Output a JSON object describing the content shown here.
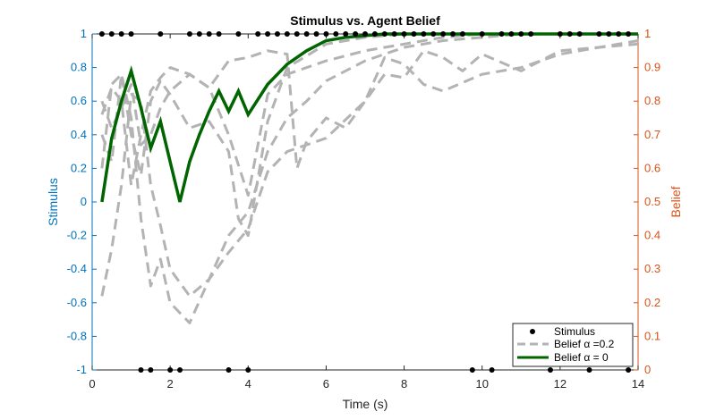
{
  "chart_data": {
    "type": "line",
    "title": "Stimulus vs. Agent Belief",
    "xlabel": "Time (s)",
    "ylabel_left": "Stimulus",
    "ylabel_right": "Belief",
    "xlim": [
      0,
      14
    ],
    "ylim_left": [
      -1,
      1
    ],
    "ylim_right": [
      0,
      1
    ],
    "x_ticks": [
      "0",
      "2",
      "4",
      "6",
      "8",
      "10",
      "12",
      "14"
    ],
    "y_left_ticks": [
      "-1",
      "-0.8",
      "-0.6",
      "-0.4",
      "-0.2",
      "0",
      "0.2",
      "0.4",
      "0.6",
      "0.8",
      "1"
    ],
    "y_right_ticks": [
      "0",
      "0.1",
      "0.2",
      "0.3",
      "0.4",
      "0.5",
      "0.6",
      "0.7",
      "0.8",
      "0.9",
      "1"
    ],
    "legend": {
      "position": "bottom-right",
      "entries": [
        "Stimulus",
        "Belief α =0.2",
        "Belief α = 0"
      ]
    },
    "colors": {
      "left_axis": "#0072BD",
      "right_axis": "#D95319",
      "stimulus": "#000000",
      "belief_alpha_02": "#b3b3b3",
      "belief_alpha_0": "#006400"
    },
    "stimulus_points": {
      "name": "Stimulus",
      "plus_one_times": [
        0.25,
        0.5,
        0.75,
        1.0,
        1.75,
        2.5,
        2.75,
        3.0,
        3.25,
        3.75,
        4.25,
        4.5,
        4.75,
        5.0,
        5.25,
        5.5,
        5.75,
        6.0,
        6.25,
        6.5,
        6.75,
        7.0,
        7.25,
        7.5,
        7.75,
        8.0,
        8.25,
        8.5,
        8.75,
        9.0,
        9.25,
        9.5,
        10.0,
        10.5,
        10.75,
        11.0,
        11.25,
        12.0,
        12.25,
        12.5,
        13.0,
        13.25,
        13.5,
        13.75
      ],
      "minus_one_times": [
        1.25,
        1.5,
        2.0,
        2.25,
        3.5,
        4.0,
        9.75,
        10.25,
        11.75,
        12.75,
        13.75
      ]
    },
    "series": [
      {
        "name": "Belief α = 0",
        "style": "solid",
        "x": [
          0.25,
          0.5,
          0.75,
          1.0,
          1.25,
          1.5,
          1.75,
          2.0,
          2.25,
          2.5,
          2.75,
          3.0,
          3.25,
          3.5,
          3.75,
          4.0,
          4.5,
          5.0,
          5.5,
          6.0,
          6.5,
          7.0,
          7.5,
          8.0,
          9.0,
          10.0,
          11.0,
          12.0,
          13.0,
          14.0
        ],
        "y": [
          0.5,
          0.69,
          0.8,
          0.89,
          0.78,
          0.66,
          0.74,
          0.62,
          0.5,
          0.62,
          0.7,
          0.77,
          0.83,
          0.77,
          0.83,
          0.76,
          0.85,
          0.91,
          0.95,
          0.98,
          0.99,
          0.995,
          1.0,
          1.0,
          1.0,
          1.0,
          1.0,
          1.0,
          1.0,
          1.0
        ]
      }
    ],
    "ghost_traces_belief_alpha_02": [
      {
        "x": [
          0.25,
          0.5,
          0.75,
          1.0,
          1.25,
          1.5,
          1.75,
          2.0,
          2.5,
          3.0,
          3.5,
          4.0,
          4.5,
          5.0,
          5.5,
          6.0,
          7.0,
          8.0,
          9.0,
          10.0,
          11.0,
          12.0,
          13.0,
          14.0
        ],
        "y": [
          0.6,
          0.85,
          0.88,
          0.75,
          0.45,
          0.25,
          0.33,
          0.2,
          0.14,
          0.27,
          0.4,
          0.47,
          0.65,
          0.75,
          0.8,
          0.86,
          0.92,
          0.96,
          0.98,
          0.99,
          1.0,
          1.0,
          1.0,
          1.0
        ]
      },
      {
        "x": [
          0.25,
          0.5,
          0.75,
          1.0,
          1.25,
          1.5,
          1.75,
          2.0,
          2.5,
          3.0,
          3.5,
          4.0,
          4.5,
          5.0,
          6.0,
          7.0,
          7.5,
          8.0,
          8.5,
          9.0,
          10.0,
          11.0,
          12.0,
          13.0,
          14.0
        ],
        "y": [
          0.22,
          0.36,
          0.55,
          0.82,
          0.8,
          0.55,
          0.43,
          0.3,
          0.22,
          0.27,
          0.35,
          0.42,
          0.59,
          0.65,
          0.69,
          0.8,
          0.93,
          0.91,
          0.85,
          0.83,
          0.88,
          0.9,
          0.94,
          0.96,
          0.98
        ]
      },
      {
        "x": [
          0.25,
          0.5,
          0.75,
          1.0,
          1.25,
          1.5,
          1.75,
          2.0,
          2.5,
          3.0,
          3.5,
          4.0,
          4.5,
          5.0,
          6.0,
          7.0,
          8.0,
          9.0,
          10.0,
          11.0,
          12.0,
          13.0,
          14.0
        ],
        "y": [
          0.8,
          0.72,
          0.78,
          0.85,
          0.67,
          0.7,
          0.78,
          0.83,
          0.88,
          0.84,
          0.7,
          0.52,
          0.82,
          0.88,
          0.92,
          0.95,
          0.97,
          0.99,
          1.0,
          1.0,
          1.0,
          1.0,
          1.0
        ]
      },
      {
        "x": [
          0.25,
          0.5,
          0.75,
          1.0,
          1.25,
          1.5,
          1.75,
          2.0,
          2.5,
          3.0,
          3.5,
          3.75,
          4.0,
          4.5,
          5.0,
          6.0,
          7.0,
          8.0,
          9.0,
          10.0,
          11.0,
          12.0,
          13.0,
          14.0
        ],
        "y": [
          0.7,
          0.62,
          0.88,
          0.7,
          0.58,
          0.8,
          0.86,
          0.82,
          0.72,
          0.74,
          0.65,
          0.45,
          0.4,
          0.74,
          0.9,
          0.97,
          0.99,
          1.0,
          1.0,
          1.0,
          1.0,
          1.0,
          1.0,
          1.0
        ]
      },
      {
        "x": [
          0.25,
          0.5,
          0.75,
          1.0,
          1.25,
          1.5,
          1.75,
          2.0,
          2.5,
          3.0,
          3.5,
          4.0,
          4.5,
          5.0,
          5.25,
          5.5,
          6.0,
          6.5,
          7.0,
          7.5,
          8.0,
          8.5,
          9.0,
          9.5,
          10.0,
          11.0,
          12.0,
          13.0,
          14.0
        ],
        "y": [
          0.76,
          0.84,
          0.8,
          0.55,
          0.7,
          0.83,
          0.87,
          0.9,
          0.88,
          0.84,
          0.92,
          0.93,
          0.95,
          0.94,
          0.6,
          0.68,
          0.75,
          0.72,
          0.8,
          0.88,
          0.87,
          0.95,
          0.93,
          0.89,
          0.94,
          0.89,
          0.95,
          0.96,
          0.97
        ]
      }
    ]
  }
}
